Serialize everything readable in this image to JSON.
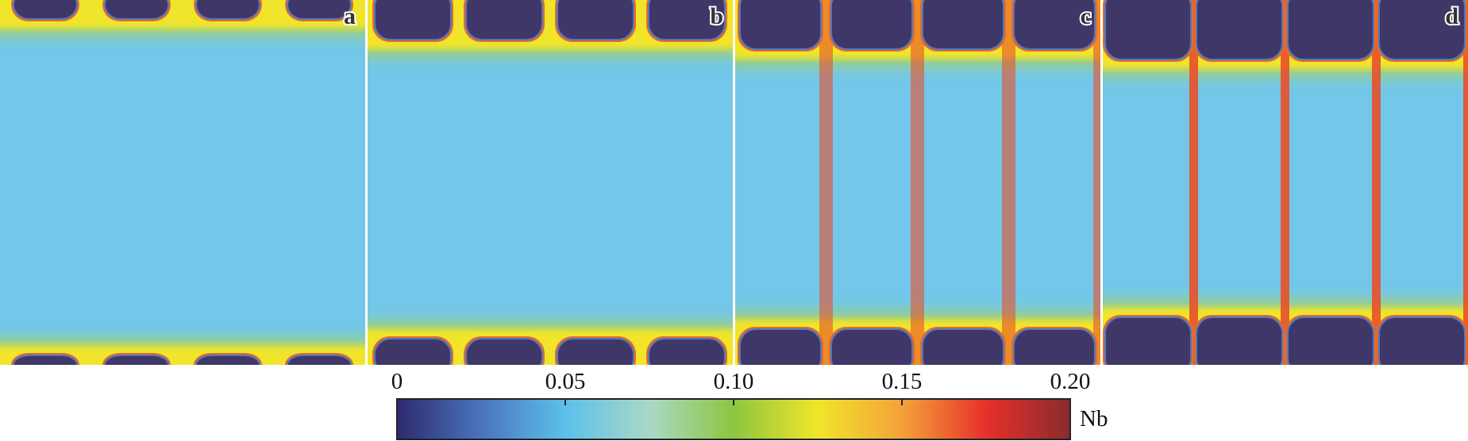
{
  "panels": [
    {
      "label": "a"
    },
    {
      "label": "b"
    },
    {
      "label": "c"
    },
    {
      "label": "d"
    }
  ],
  "colorbar": {
    "label": "Nb",
    "lim": [
      0,
      0.2
    ],
    "ticks": [
      0,
      0.05,
      {
        "value": 0.1,
        "label": "0.10"
      },
      0.15,
      {
        "value": 0.2,
        "label": "0.20"
      }
    ],
    "colors": [
      "#2d2a6e",
      "#4a74bd",
      "#5cc0ea",
      "#a9d9c6",
      "#8dc640",
      "#f1e52a",
      "#f4a23a",
      "#e6302a",
      "#8a2b2e"
    ]
  }
}
